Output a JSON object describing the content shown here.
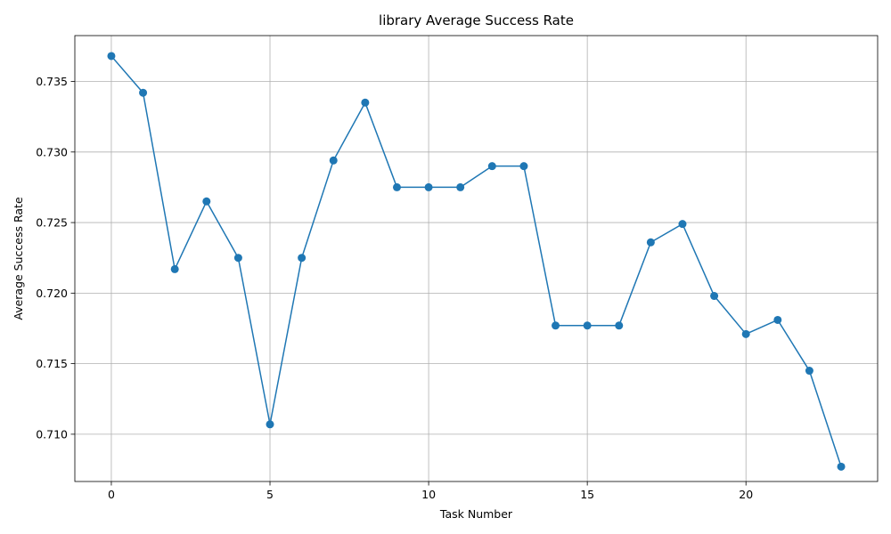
{
  "chart_data": {
    "type": "line",
    "title": "library Average Success Rate",
    "xlabel": "Task Number",
    "ylabel": "Average Success Rate",
    "x": [
      0,
      1,
      2,
      3,
      4,
      5,
      6,
      7,
      8,
      9,
      10,
      11,
      12,
      13,
      14,
      15,
      16,
      17,
      18,
      19,
      20,
      21,
      22,
      23
    ],
    "series": [
      {
        "values": [
          0.7368,
          0.7342,
          0.7217,
          0.7265,
          0.7225,
          0.7107,
          0.7225,
          0.7294,
          0.7335,
          0.7275,
          0.7275,
          0.7275,
          0.729,
          0.729,
          0.7177,
          0.7177,
          0.7177,
          0.7236,
          0.7249,
          0.7198,
          0.7171,
          0.7181,
          0.7145,
          0.7077
        ],
        "color": "#1f77b4",
        "marker": "circle"
      }
    ],
    "xlim": [
      -1.15,
      24.15
    ],
    "ylim": [
      0.70665,
      0.73825
    ],
    "xticks": [
      0,
      5,
      10,
      15,
      20
    ],
    "xtick_labels": [
      "0",
      "5",
      "10",
      "15",
      "20"
    ],
    "yticks": [
      0.71,
      0.715,
      0.72,
      0.725,
      0.73,
      0.735
    ],
    "ytick_labels": [
      "0.710",
      "0.715",
      "0.720",
      "0.725",
      "0.730",
      "0.735"
    ],
    "grid": true,
    "legend": "none"
  }
}
